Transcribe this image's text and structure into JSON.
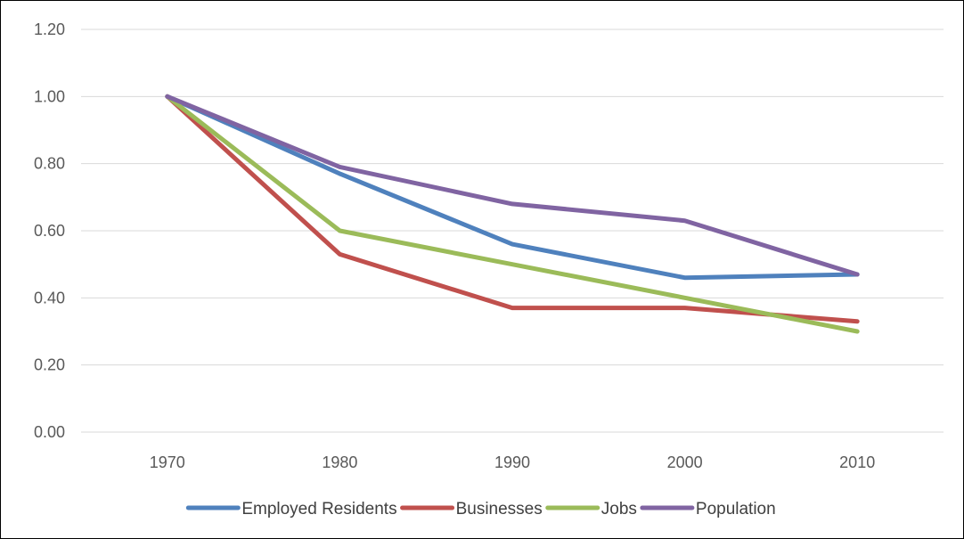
{
  "chart_data": {
    "type": "line",
    "categories": [
      "1970",
      "1980",
      "1990",
      "2000",
      "2010"
    ],
    "series": [
      {
        "name": "Employed Residents",
        "values": [
          1.0,
          0.77,
          0.56,
          0.46,
          0.47
        ],
        "color": "#4f81bd"
      },
      {
        "name": "Businesses",
        "values": [
          1.0,
          0.53,
          0.37,
          0.37,
          0.33
        ],
        "color": "#c0504d"
      },
      {
        "name": "Jobs",
        "values": [
          1.0,
          0.6,
          0.5,
          0.4,
          0.3
        ],
        "color": "#9bbb59"
      },
      {
        "name": "Population",
        "values": [
          1.0,
          0.79,
          0.68,
          0.63,
          0.47
        ],
        "color": "#8064a2"
      }
    ],
    "yticks": [
      "0.00",
      "0.20",
      "0.40",
      "0.60",
      "0.80",
      "1.00",
      "1.20"
    ],
    "ylim": [
      0,
      1.2
    ],
    "grid": true,
    "legend_position": "bottom",
    "title": "",
    "xlabel": "",
    "ylabel": ""
  }
}
